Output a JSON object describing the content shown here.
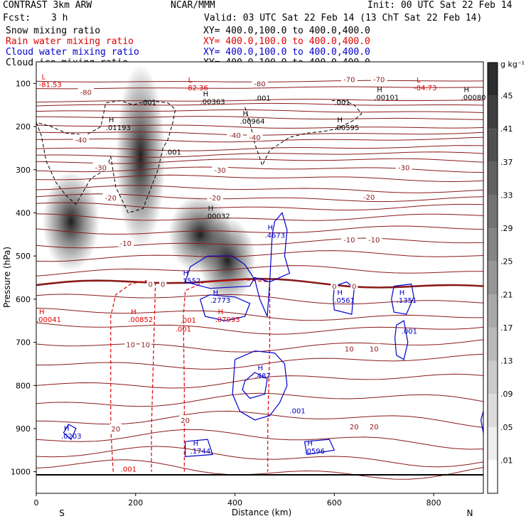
{
  "header": {
    "model": "CONTRAST  3km ARW",
    "org": "NCAR/MMM",
    "init": "Init: 00 UTC Sat 22 Feb 14",
    "fcst_label": "Fcst:",
    "fcst_value": "3 h",
    "valid": "Valid: 03 UTC Sat 22 Feb 14 (13 ChT Sat 22 Feb 14)"
  },
  "fields": [
    {
      "name": "Snow mixing ratio",
      "xy": "XY= 400.0,100.0 to 400.0,400.0"
    },
    {
      "name": "Rain water mixing ratio",
      "xy": "XY= 400.0,100.0 to 400.0,400.0"
    },
    {
      "name": "Cloud water mixing ratio",
      "xy": "XY= 400.0,100.0 to 400.0,400.0"
    },
    {
      "name": "Cloud ice mixing ratio",
      "xy": "XY= 400.0,100.0 to 400.0,400.0"
    }
  ],
  "colors": {
    "snow": "#000000",
    "rain": "#e00000",
    "cloud": "#0000cc",
    "ice": "#000000",
    "temperature": "#8b1a1a",
    "freezing_level": "#8b1a1a"
  },
  "chart_data": {
    "type": "heatmap",
    "xlabel": "Distance (km)",
    "ylabel": "Pressure (hPa)",
    "xlim": [
      0,
      900
    ],
    "ylim": [
      1050,
      50
    ],
    "x_ticks": [
      0,
      200,
      400,
      600,
      800
    ],
    "y_ticks": [
      100,
      200,
      300,
      400,
      500,
      600,
      700,
      800,
      900,
      1000
    ],
    "x_ends": {
      "left": "S",
      "right": "N"
    },
    "colorbar": {
      "unit": "g kg⁻¹",
      "levels": [
        ".01",
        ".05",
        ".09",
        ".13",
        ".17",
        ".21",
        ".25",
        ".29",
        ".33",
        ".37",
        ".41",
        ".45"
      ]
    },
    "snow_maxima": [
      {
        "x": 210,
        "p": 270
      },
      {
        "x": 70,
        "p": 420
      },
      {
        "x": 330,
        "p": 450
      },
      {
        "x": 385,
        "p": 510
      }
    ],
    "temperature_labels": [
      {
        "x": 100,
        "p": 120,
        "text": "-80"
      },
      {
        "x": 450,
        "p": 100,
        "text": "-80"
      },
      {
        "x": 630,
        "p": 90,
        "text": "-70"
      },
      {
        "x": 690,
        "p": 90,
        "text": "-70"
      },
      {
        "x": 90,
        "p": 230,
        "text": "-40"
      },
      {
        "x": 400,
        "p": 220,
        "text": "-40"
      },
      {
        "x": 440,
        "p": 225,
        "text": "-40"
      },
      {
        "x": 130,
        "p": 295,
        "text": "-30"
      },
      {
        "x": 370,
        "p": 300,
        "text": "-30"
      },
      {
        "x": 740,
        "p": 295,
        "text": "-30"
      },
      {
        "x": 150,
        "p": 365,
        "text": "-20"
      },
      {
        "x": 360,
        "p": 365,
        "text": "-20"
      },
      {
        "x": 670,
        "p": 363,
        "text": "-20"
      },
      {
        "x": 180,
        "p": 470,
        "text": "-10"
      },
      {
        "x": 630,
        "p": 462,
        "text": "-10"
      },
      {
        "x": 680,
        "p": 462,
        "text": "-10"
      },
      {
        "x": 230,
        "p": 565,
        "text": "0"
      },
      {
        "x": 255,
        "p": 565,
        "text": "0"
      },
      {
        "x": 600,
        "p": 570,
        "text": "0"
      },
      {
        "x": 640,
        "p": 570,
        "text": "0"
      },
      {
        "x": 190,
        "p": 705,
        "text": "10"
      },
      {
        "x": 220,
        "p": 705,
        "text": "10"
      },
      {
        "x": 630,
        "p": 715,
        "text": "10"
      },
      {
        "x": 680,
        "p": 715,
        "text": "10"
      },
      {
        "x": 160,
        "p": 900,
        "text": "20"
      },
      {
        "x": 300,
        "p": 880,
        "text": "20"
      },
      {
        "x": 640,
        "p": 895,
        "text": "20"
      },
      {
        "x": 680,
        "p": 895,
        "text": "20"
      }
    ],
    "extrema": [
      {
        "x": 5,
        "p": 90,
        "letter": "L",
        "value": "-81.53",
        "field": "temperature"
      },
      {
        "x": 300,
        "p": 98,
        "letter": "L",
        "value": "-82.36",
        "field": "temperature"
      },
      {
        "x": 760,
        "p": 98,
        "letter": "L",
        "value": "-84.73",
        "field": "temperature"
      },
      {
        "x": 140,
        "p": 190,
        "letter": "H",
        "value": ".01193",
        "field": "ice"
      },
      {
        "x": 330,
        "p": 130,
        "letter": "H",
        "value": ".00363",
        "field": "ice"
      },
      {
        "x": 410,
        "p": 175,
        "letter": "H",
        "value": ".00964",
        "field": "ice"
      },
      {
        "x": 600,
        "p": 190,
        "letter": "H",
        "value": ".00595",
        "field": "ice"
      },
      {
        "x": 680,
        "p": 120,
        "letter": "H",
        "value": ".00101",
        "field": "ice"
      },
      {
        "x": 855,
        "p": 120,
        "letter": "H",
        "value": ".00080",
        "field": "ice"
      },
      {
        "x": 340,
        "p": 395,
        "letter": "H",
        "value": ".00032",
        "field": "snow"
      },
      {
        "x": 0,
        "p": 635,
        "letter": "H",
        "value": ".00041",
        "field": "rain"
      },
      {
        "x": 185,
        "p": 635,
        "letter": "H",
        "value": ".00852",
        "field": "rain"
      },
      {
        "x": 360,
        "p": 635,
        "letter": "H",
        "value": ".07993",
        "field": "rain"
      },
      {
        "x": 460,
        "p": 440,
        "letter": "H",
        "value": ".4673",
        "field": "cloud"
      },
      {
        "x": 290,
        "p": 545,
        "letter": "H",
        "value": ".1552",
        "field": "cloud"
      },
      {
        "x": 350,
        "p": 590,
        "letter": "H",
        "value": ".2773",
        "field": "cloud"
      },
      {
        "x": 600,
        "p": 590,
        "letter": "H",
        "value": ".0561",
        "field": "cloud"
      },
      {
        "x": 725,
        "p": 590,
        "letter": "H",
        "value": ".1351",
        "field": "cloud"
      },
      {
        "x": 440,
        "p": 765,
        "letter": "H",
        "value": ".487",
        "field": "cloud"
      },
      {
        "x": 50,
        "p": 905,
        "letter": "H",
        "value": ".0203",
        "field": "cloud"
      },
      {
        "x": 310,
        "p": 940,
        "letter": "H",
        "value": ".1744",
        "field": "cloud"
      },
      {
        "x": 540,
        "p": 940,
        "letter": "H",
        "value": ".0596",
        "field": "cloud"
      }
    ],
    "contour_labels": [
      {
        "x": 210,
        "p": 150,
        "text": ".001",
        "field": "ice"
      },
      {
        "x": 440,
        "p": 140,
        "text": ".001",
        "field": "ice"
      },
      {
        "x": 600,
        "p": 150,
        "text": ".001",
        "field": "ice"
      },
      {
        "x": 260,
        "p": 265,
        "text": ".001",
        "field": "ice"
      },
      {
        "x": 290,
        "p": 655,
        "text": ".001",
        "field": "rain"
      },
      {
        "x": 280,
        "p": 675,
        "text": ".001",
        "field": "rain"
      },
      {
        "x": 170,
        "p": 1000,
        "text": ".001",
        "field": "rain"
      },
      {
        "x": 735,
        "p": 680,
        "text": ".001",
        "field": "cloud"
      },
      {
        "x": 510,
        "p": 865,
        "text": ".001",
        "field": "cloud"
      }
    ]
  }
}
